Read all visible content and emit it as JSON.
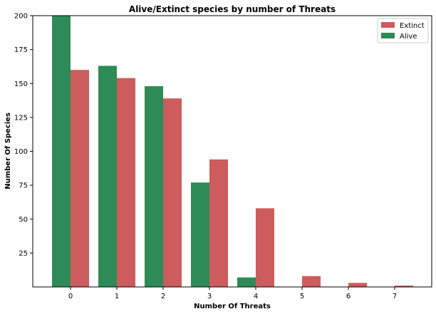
{
  "chart_data": {
    "type": "bar",
    "title": "Alive/Extinct species by number of Threats",
    "xlabel": "Number Of Threats",
    "ylabel": "Number Of Species",
    "categories": [
      "0",
      "1",
      "2",
      "3",
      "4",
      "5",
      "6",
      "7"
    ],
    "series": [
      {
        "name": "Alive",
        "color": "#2e8b57",
        "values": [
          200,
          163,
          148,
          77,
          7,
          0,
          0,
          0
        ]
      },
      {
        "name": "Extinct",
        "color": "#cd5c5c",
        "values": [
          160,
          154,
          139,
          94,
          58,
          8,
          3,
          1
        ]
      }
    ],
    "ylim": [
      0,
      200
    ],
    "yticks": [
      25,
      50,
      75,
      100,
      125,
      150,
      175,
      200
    ],
    "legend": {
      "placement": "top-right",
      "order": [
        "Extinct",
        "Alive"
      ]
    },
    "grid": false
  }
}
